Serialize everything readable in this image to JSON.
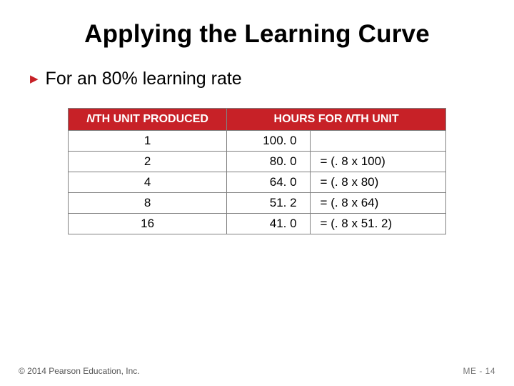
{
  "title": "Applying the Learning Curve",
  "bullet": "For an 80% learning rate",
  "table": {
    "header1_pre": "N",
    "header1_rest": "TH UNIT PRODUCED",
    "header2_pre": "HOURS FOR ",
    "header2_ital": "N",
    "header2_post": "TH UNIT",
    "rows": [
      {
        "n": "1",
        "hours": "100. 0",
        "formula": ""
      },
      {
        "n": "2",
        "hours": "80. 0",
        "formula": "= (. 8 x 100)"
      },
      {
        "n": "4",
        "hours": "64. 0",
        "formula": "= (. 8 x 80)"
      },
      {
        "n": "8",
        "hours": "51. 2",
        "formula": "= (. 8 x 64)"
      },
      {
        "n": "16",
        "hours": "41. 0",
        "formula": "= (. 8 x 51. 2)"
      }
    ]
  },
  "footer_left": "© 2014 Pearson Education, Inc.",
  "footer_right": "ME - 14",
  "colors": {
    "header_bg": "#c72127",
    "header_fg": "#ffffff",
    "border": "#808080",
    "bullet_marker": "#c72127"
  }
}
